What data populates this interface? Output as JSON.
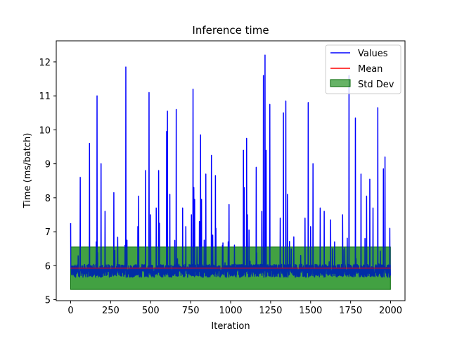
{
  "chart_data": {
    "type": "line",
    "title": "Inference time",
    "xlabel": "Iteration",
    "ylabel": "Time (ms/batch)",
    "xlim": [
      -90,
      2090
    ],
    "ylim": [
      4.97,
      12.62
    ],
    "xticks": [
      0,
      250,
      500,
      750,
      1000,
      1250,
      1500,
      1750,
      2000
    ],
    "xtick_labels": [
      "0",
      "250",
      "500",
      "750",
      "1000",
      "1250",
      "1500",
      "1750",
      "2000"
    ],
    "yticks": [
      5,
      6,
      7,
      8,
      9,
      10,
      11,
      12
    ],
    "ytick_labels": [
      "5",
      "6",
      "7",
      "8",
      "9",
      "10",
      "11",
      "12"
    ],
    "grid": false,
    "legend_position": "top-right",
    "colors": {
      "values": "#0000ff",
      "mean": "#ff0000",
      "std_fill": "#008000",
      "std_edge": "#006400"
    },
    "series": [
      {
        "name": "Values",
        "n": 2000,
        "baseline": 5.85,
        "spikes": [
          [
            0,
            7.25
          ],
          [
            60,
            8.6
          ],
          [
            118,
            9.6
          ],
          [
            160,
            6.7
          ],
          [
            165,
            11.0
          ],
          [
            190,
            9.0
          ],
          [
            215,
            7.6
          ],
          [
            270,
            8.15
          ],
          [
            340,
            6.6
          ],
          [
            345,
            11.85
          ],
          [
            352,
            6.75
          ],
          [
            420,
            7.15
          ],
          [
            425,
            8.05
          ],
          [
            468,
            8.8
          ],
          [
            490,
            11.1
          ],
          [
            500,
            7.5
          ],
          [
            535,
            7.7
          ],
          [
            550,
            8.8
          ],
          [
            555,
            7.25
          ],
          [
            600,
            9.95
          ],
          [
            605,
            10.55
          ],
          [
            620,
            8.1
          ],
          [
            660,
            10.6
          ],
          [
            700,
            7.7
          ],
          [
            720,
            7.15
          ],
          [
            755,
            7.5
          ],
          [
            765,
            11.2
          ],
          [
            770,
            8.3
          ],
          [
            775,
            7.95
          ],
          [
            805,
            7.3
          ],
          [
            812,
            9.85
          ],
          [
            818,
            7.95
          ],
          [
            835,
            6.75
          ],
          [
            845,
            8.7
          ],
          [
            880,
            9.25
          ],
          [
            888,
            6.9
          ],
          [
            905,
            8.65
          ],
          [
            908,
            7.1
          ],
          [
            985,
            6.7
          ],
          [
            990,
            7.8
          ],
          [
            1080,
            9.4
          ],
          [
            1085,
            8.3
          ],
          [
            1100,
            9.75
          ],
          [
            1105,
            7.5
          ],
          [
            1115,
            7.05
          ],
          [
            1160,
            8.9
          ],
          [
            1195,
            7.6
          ],
          [
            1205,
            11.6
          ],
          [
            1215,
            12.2
          ],
          [
            1222,
            9.4
          ],
          [
            1245,
            10.75
          ],
          [
            1310,
            7.4
          ],
          [
            1330,
            10.5
          ],
          [
            1345,
            10.85
          ],
          [
            1355,
            8.1
          ],
          [
            1395,
            6.85
          ],
          [
            1465,
            7.4
          ],
          [
            1485,
            10.8
          ],
          [
            1500,
            7.15
          ],
          [
            1515,
            9.0
          ],
          [
            1560,
            7.7
          ],
          [
            1585,
            7.6
          ],
          [
            1625,
            7.35
          ],
          [
            1650,
            6.7
          ],
          [
            1700,
            7.5
          ],
          [
            1740,
            11.6
          ],
          [
            1780,
            10.35
          ],
          [
            1815,
            8.7
          ],
          [
            1840,
            6.8
          ],
          [
            1850,
            8.05
          ],
          [
            1870,
            8.55
          ],
          [
            1890,
            7.7
          ],
          [
            1920,
            10.65
          ],
          [
            1955,
            8.85
          ],
          [
            1965,
            9.2
          ],
          [
            1995,
            7.1
          ]
        ]
      },
      {
        "name": "Mean",
        "value": 5.93
      },
      {
        "name": "Std Dev",
        "lower": 5.3,
        "upper": 6.55
      }
    ]
  }
}
